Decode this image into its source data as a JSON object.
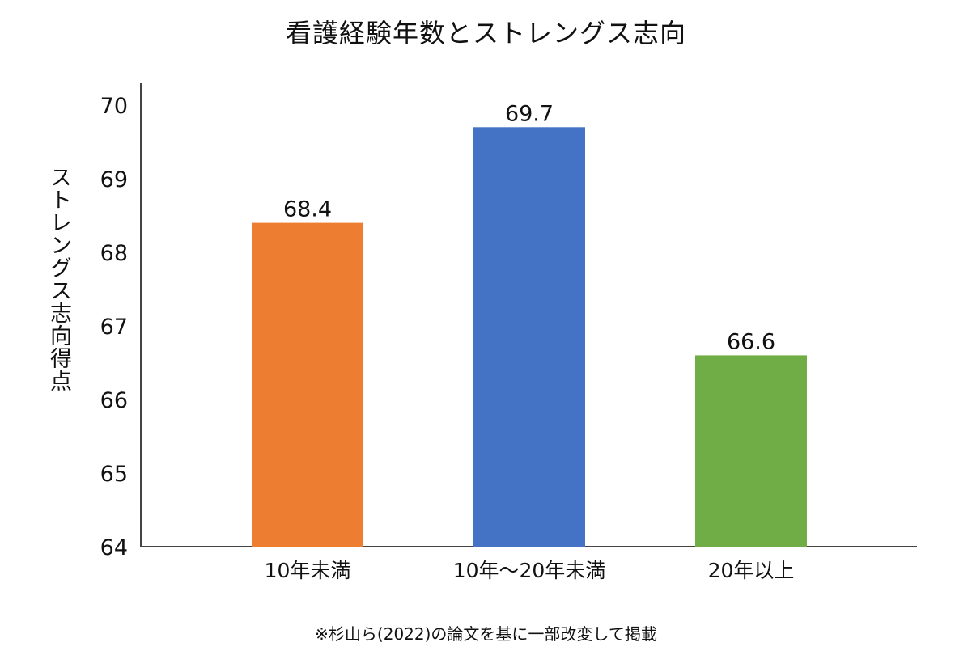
{
  "chart_data": {
    "type": "bar",
    "title": "看護経験年数とストレングス志向",
    "xlabel": "",
    "ylabel": "ストレングス志向得点",
    "categories": [
      "10年未満",
      "10年〜20年未満",
      "20年以上"
    ],
    "values": [
      68.4,
      69.7,
      66.6
    ],
    "data_labels": [
      "68.4",
      "69.7",
      "66.6"
    ],
    "colors": [
      "#ED7D31",
      "#4472C4",
      "#70AD47"
    ],
    "ylim": [
      64,
      70
    ],
    "yticks": [
      64,
      65,
      66,
      67,
      68,
      69,
      70
    ],
    "grid": false,
    "legend": "none"
  },
  "caption": "※杉山ら(2022)の論文を基に一部改変して掲載"
}
